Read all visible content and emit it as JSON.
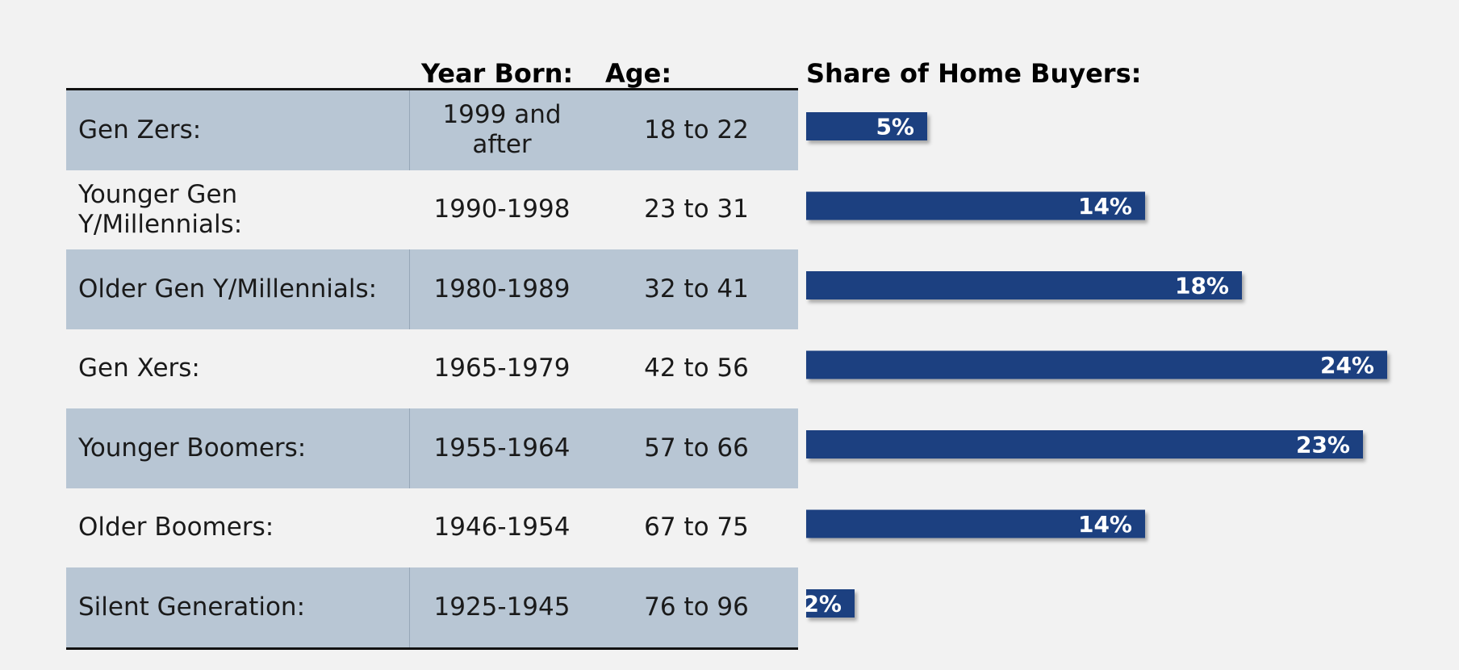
{
  "headers": {
    "year_born": "Year Born:",
    "age": "Age:",
    "share": "Share of Home Buyers:"
  },
  "rows": [
    {
      "generation": "Gen Zers:",
      "year_born": "1999 and after",
      "age": "18 to 22",
      "shaded": true
    },
    {
      "generation": "Younger Gen Y/Millennials:",
      "year_born": "1990-1998",
      "age": "23 to 31",
      "shaded": false
    },
    {
      "generation": "Older Gen Y/Millennials:",
      "year_born": "1980-1989",
      "age": "32 to 41",
      "shaded": true
    },
    {
      "generation": "Gen Xers:",
      "year_born": "1965-1979",
      "age": "42 to 56",
      "shaded": false
    },
    {
      "generation": "Younger Boomers:",
      "year_born": "1955-1964",
      "age": "57 to 66",
      "shaded": true
    },
    {
      "generation": "Older Boomers:",
      "year_born": "1946-1954",
      "age": "67 to 75",
      "shaded": false
    },
    {
      "generation": "Silent Generation:",
      "year_born": "1925-1945",
      "age": "76 to 96",
      "shaded": true
    }
  ],
  "chart_data": {
    "type": "bar",
    "orientation": "horizontal",
    "title": "Share of Home Buyers:",
    "categories": [
      "Gen Zers:",
      "Younger Gen Y/Millennials:",
      "Older Gen Y/Millennials:",
      "Gen Xers:",
      "Younger Boomers:",
      "Older Boomers:",
      "Silent Generation:"
    ],
    "values": [
      5,
      14,
      18,
      24,
      23,
      14,
      2
    ],
    "labels": [
      "5%",
      "14%",
      "18%",
      "24%",
      "23%",
      "14%",
      "2%"
    ],
    "unit": "%",
    "bar_color": "#1b4180",
    "label_color": "#ffffff",
    "grid": false,
    "legend": "none"
  },
  "colors": {
    "background": "#f2f2f2",
    "shaded_row": "#b8c6d4",
    "bar": "#1b4180"
  }
}
